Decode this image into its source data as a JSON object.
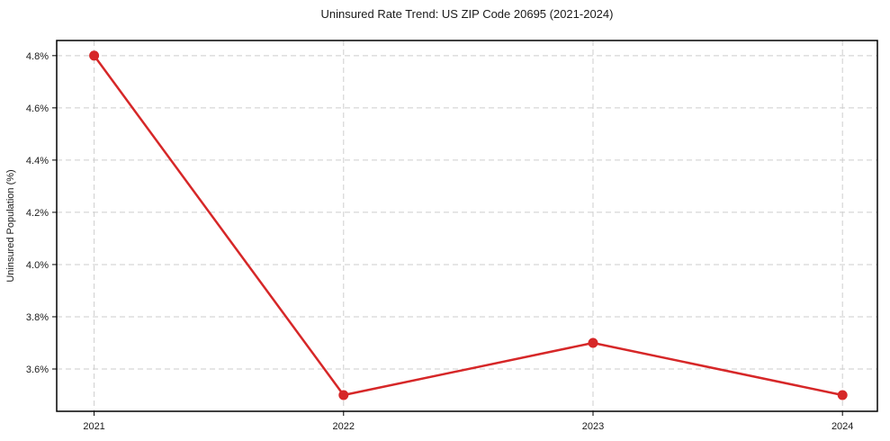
{
  "chart_data": {
    "type": "line",
    "title": "Uninsured Rate Trend: US ZIP Code 20695 (2021-2024)",
    "xlabel": "",
    "ylabel": "Uninsured Population (%)",
    "categories": [
      2021,
      2022,
      2023,
      2024
    ],
    "values": [
      4.8,
      3.5,
      3.7,
      3.5
    ],
    "x_tick_labels": [
      "2021",
      "2022",
      "2023",
      "2024"
    ],
    "y_ticks": [
      3.6,
      3.8,
      4.0,
      4.2,
      4.4,
      4.6,
      4.8
    ],
    "y_tick_labels": [
      "3.6%",
      "3.8%",
      "4.0%",
      "4.2%",
      "4.4%",
      "4.6%",
      "4.8%"
    ],
    "xlim": [
      2020.85,
      2024.14
    ],
    "ylim": [
      3.438,
      4.858
    ],
    "grid": true,
    "grid_style": "dashed",
    "legend": "none",
    "line_color": "#d62728",
    "marker": "circle",
    "background_color": "#ffffff"
  }
}
